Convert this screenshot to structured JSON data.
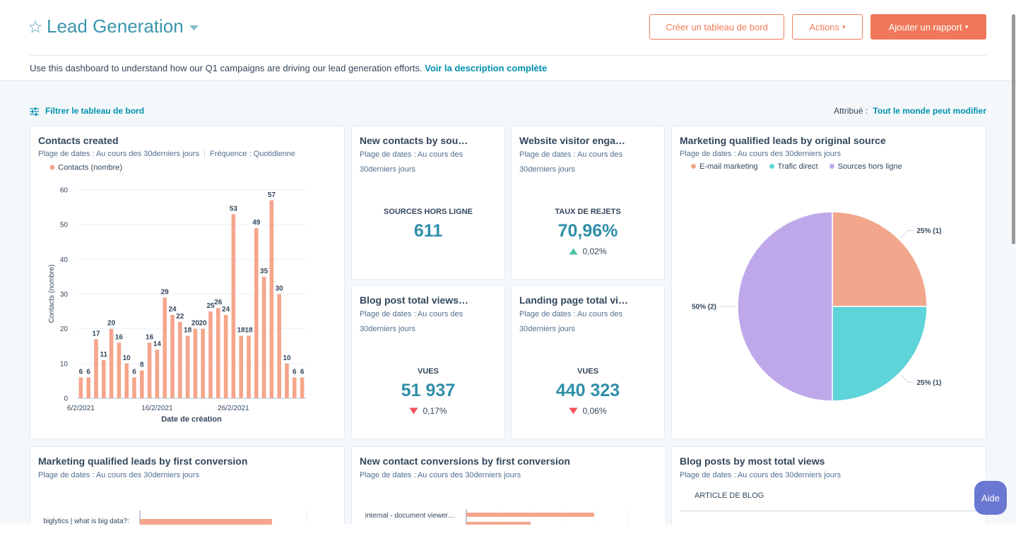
{
  "header": {
    "title": "Lead Generation",
    "buttons": [
      "Créer un tableau de bord",
      "Actions",
      "Ajouter un rapport"
    ],
    "description": "Use this dashboard to understand how our Q1 campaigns are driving our lead generation efforts.",
    "description_link": "Voir la description complète"
  },
  "toolbar": {
    "filter": "Filtrer le tableau de bord",
    "assigned_label": "Attribué :",
    "assigned_value": "Tout le monde peut modifier"
  },
  "chart_data": [
    {
      "type": "bar",
      "title": "Contacts created",
      "subtitle": [
        "Plage de dates : Au cours des 30derniers jours",
        "Fréquence : Quotidienne"
      ],
      "categories": [
        "6/2/2021",
        null,
        null,
        null,
        null,
        null,
        null,
        null,
        null,
        null,
        "16/2/2021",
        null,
        null,
        null,
        null,
        null,
        null,
        null,
        null,
        null,
        "26/2/2021",
        null,
        null,
        null,
        null,
        null,
        null,
        null,
        null,
        null
      ],
      "series": [
        {
          "name": "Contacts (nombre)",
          "color": "#f5a58c",
          "values": [
            6,
            6,
            17,
            11,
            20,
            16,
            10,
            6,
            8,
            16,
            14,
            29,
            24,
            22,
            18,
            20,
            20,
            25,
            26,
            24,
            53,
            18,
            18,
            49,
            35,
            57,
            30,
            10,
            6,
            6
          ]
        }
      ],
      "ylim": [
        0,
        60
      ],
      "yticks": [
        0,
        10,
        20,
        30,
        40,
        50,
        60
      ],
      "grid": true,
      "xlabel": "Date de création",
      "ylabel": "Contacts (nombre)"
    },
    {
      "type": "pie",
      "title": "Marketing qualified leads by original source",
      "subtitle": [
        "Plage de dates : Au cours des 30derniers jours"
      ],
      "categories": [
        "E-mail marketing",
        "Trafic direct",
        "Sources hors ligne"
      ],
      "values": [
        25,
        25,
        50
      ],
      "value_labels": [
        "25% (1)",
        "25% (1)",
        "50% (2)"
      ],
      "colors": [
        "#f2a68b",
        "#5ed3d8",
        "#bea8ea"
      ]
    }
  ],
  "kpis": [
    {
      "title": "New contacts by sou…",
      "subtitle": "Plage de dates : Au cours des 30derniers jours",
      "label": "SOURCES HORS LIGNE",
      "value": "611"
    },
    {
      "title": "Website visitor enga…",
      "subtitle": "Plage de dates : Au cours des 30derniers jours",
      "label": "TAUX DE REJETS",
      "value": "70,96%",
      "change": "0,02%",
      "direction": "up"
    },
    {
      "title": "Blog post total views…",
      "subtitle": "Plage de dates : Au cours des 30derniers jours",
      "label": "VUES",
      "value": "51 937",
      "change": "0,17%",
      "direction": "down"
    },
    {
      "title": "Landing page total vi…",
      "subtitle": "Plage de dates : Au cours des 30derniers jours",
      "label": "VUES",
      "value": "440 323",
      "change": "0,06%",
      "direction": "down"
    }
  ],
  "bottom": [
    {
      "title": "Marketing qualified leads by first conversion",
      "subtitle": "Plage de dates : Au cours des 30derniers jours",
      "label": "biglytics | what is big data?:"
    },
    {
      "title": "New contact conversions by first conversion",
      "subtitle": "Plage de dates : Au cours des 30derniers jours",
      "label": "internal - document viewer…"
    },
    {
      "title": "Blog posts by most total views",
      "subtitle": "Plage de dates : Au cours des 30derniers jours",
      "label": "ARTICLE DE BLOG"
    }
  ],
  "help": "Aide"
}
